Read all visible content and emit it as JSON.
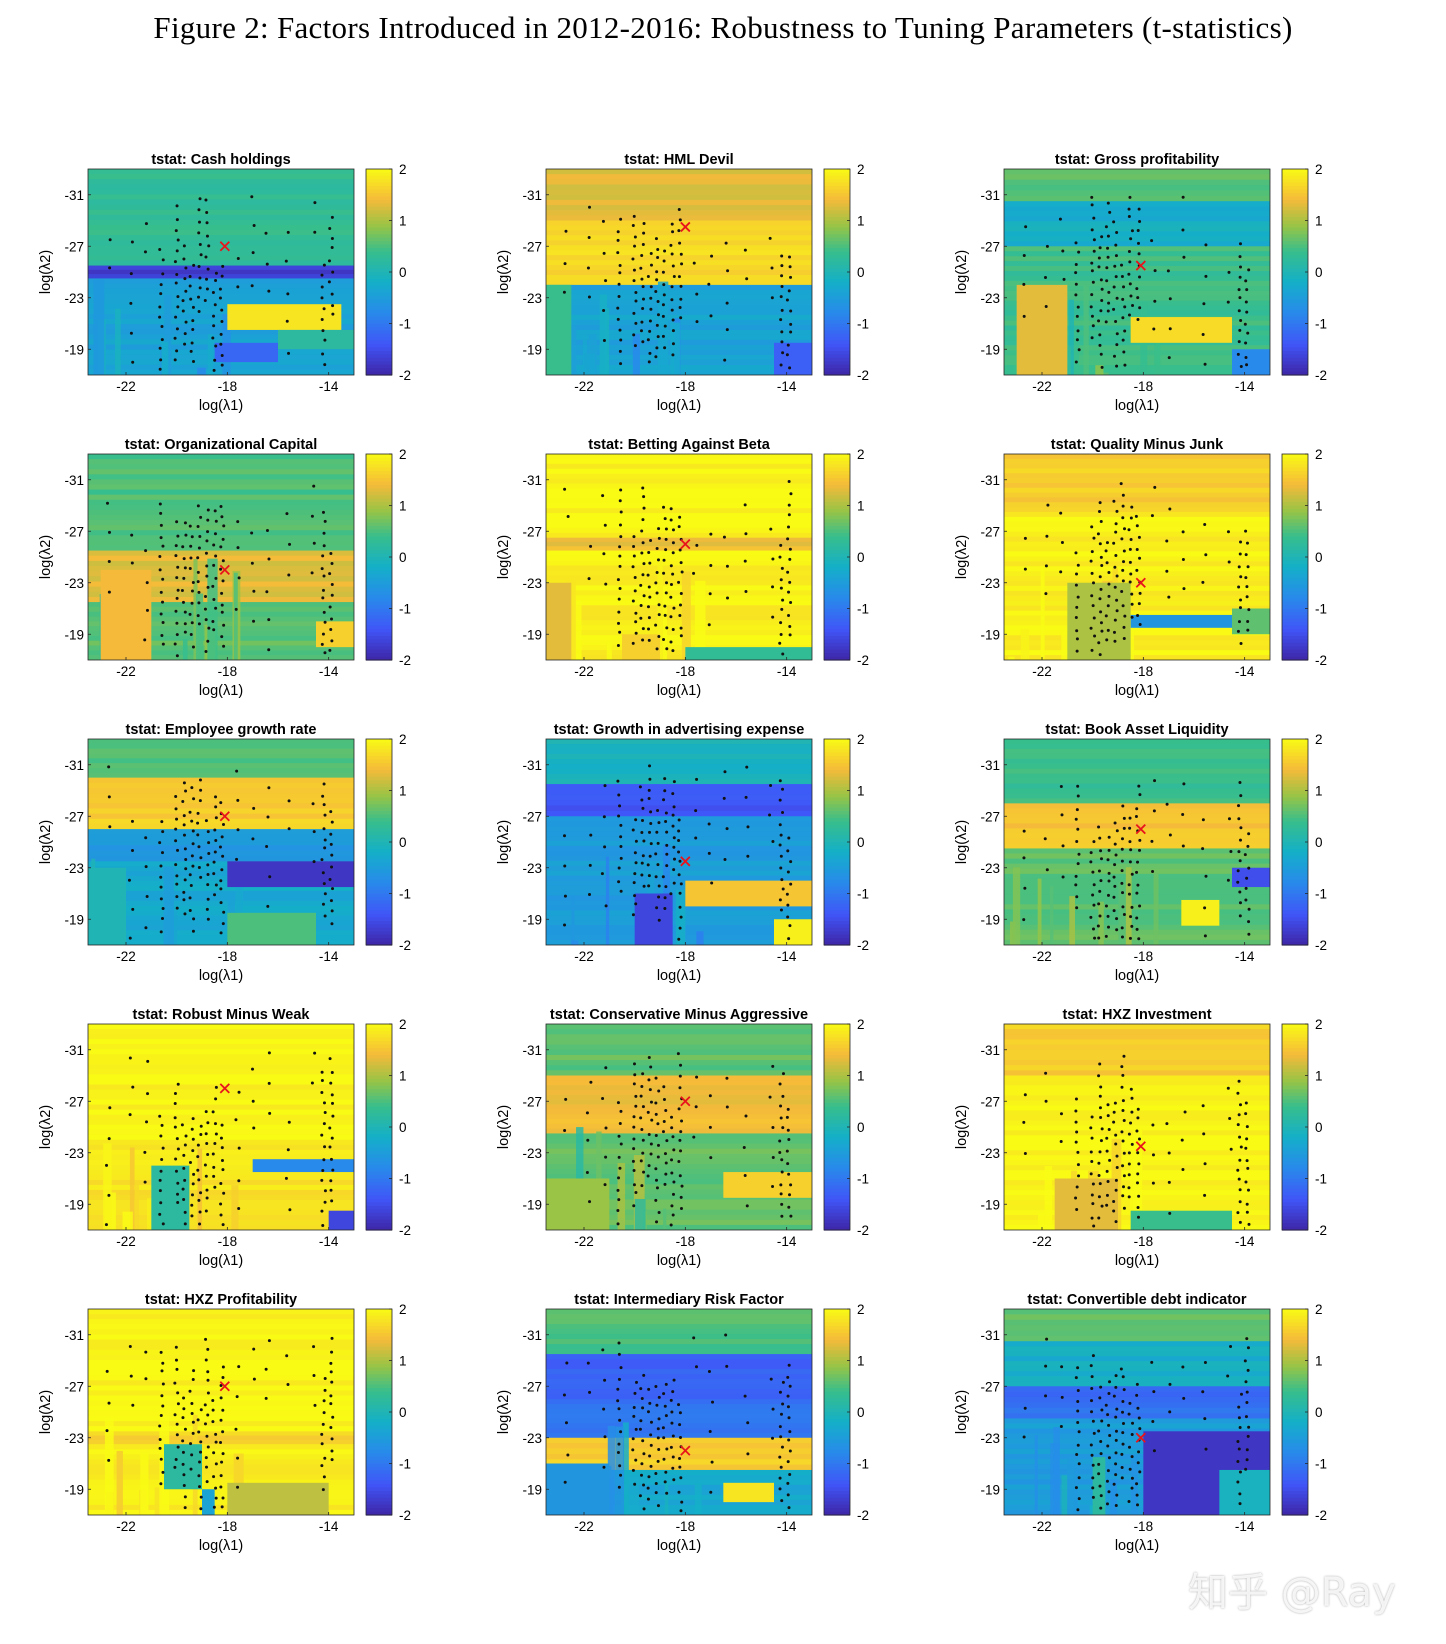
{
  "figure_title": "Figure 2: Factors Introduced in 2012-2016: Robustness to Tuning Parameters (t-statistics)",
  "watermark": "知乎 @Ray",
  "colors": {
    "min": "#3e26a8",
    "low": "#2f8cf0",
    "mid": "#17b0c4",
    "midhigh": "#67c46a",
    "high": "#f7b731",
    "max": "#f9fb14",
    "marker": "#e8141c",
    "dots": "#111111"
  },
  "chart_data": [
    {
      "type": "heatmap",
      "title": "tstat: Cash holdings",
      "xlabel": "log(λ1)",
      "ylabel": "log(λ2)",
      "xlim": [
        -23.5,
        -13
      ],
      "ylim": [
        -33,
        -17
      ],
      "xticks": [
        -22,
        -18,
        -14
      ],
      "yticks": [
        -31,
        -27,
        -23,
        -19
      ],
      "clim": [
        -2,
        2
      ],
      "colorbar_ticks": [
        2,
        1,
        0,
        -1,
        -2
      ],
      "marker": [
        -18.1,
        -27.0
      ],
      "bands": [
        [
          -33,
          -25.5,
          0.3
        ],
        [
          -25.5,
          -24.5,
          -1.7
        ],
        [
          -24.5,
          -17,
          -0.4
        ]
      ],
      "patches": [
        [
          -18,
          -13.5,
          -22.5,
          -20.5,
          1.8
        ],
        [
          -16,
          -13,
          -20.5,
          -19,
          0.2
        ],
        [
          -18.5,
          -16,
          -19.5,
          -18,
          -1.2
        ]
      ]
    },
    {
      "type": "heatmap",
      "title": "tstat: HML Devil",
      "xlabel": "log(λ1)",
      "ylabel": "log(λ2)",
      "xlim": [
        -23.5,
        -13
      ],
      "ylim": [
        -33,
        -17
      ],
      "xticks": [
        -22,
        -18,
        -14
      ],
      "yticks": [
        -31,
        -27,
        -23,
        -19
      ],
      "clim": [
        -2,
        2
      ],
      "colorbar_ticks": [
        2,
        1,
        0,
        -1,
        -2
      ],
      "marker": [
        -18.0,
        -28.5
      ],
      "bands": [
        [
          -33,
          -29,
          1.3
        ],
        [
          -29,
          -24,
          1.7
        ],
        [
          -24,
          -17,
          -0.4
        ]
      ],
      "patches": [
        [
          -14.5,
          -13,
          -19.5,
          -17,
          -1.3
        ],
        [
          -23.5,
          -22.5,
          -24,
          -17,
          0.4
        ]
      ]
    },
    {
      "type": "heatmap",
      "title": "tstat: Gross profitability",
      "xlabel": "log(λ1)",
      "ylabel": "log(λ2)",
      "xlim": [
        -23.5,
        -13
      ],
      "ylim": [
        -33,
        -17
      ],
      "xticks": [
        -22,
        -18,
        -14
      ],
      "yticks": [
        -31,
        -27,
        -23,
        -19
      ],
      "clim": [
        -2,
        2
      ],
      "colorbar_ticks": [
        2,
        1,
        0,
        -1,
        -2
      ],
      "marker": [
        -18.1,
        -25.5
      ],
      "bands": [
        [
          -33,
          -30.5,
          0.6
        ],
        [
          -30.5,
          -27,
          -0.2
        ],
        [
          -27,
          -17,
          0.4
        ]
      ],
      "patches": [
        [
          -23,
          -21,
          -24,
          -17,
          1.3
        ],
        [
          -18.5,
          -14.5,
          -21.5,
          -19.5,
          1.7
        ],
        [
          -14.5,
          -13,
          -19,
          -17,
          -0.8
        ]
      ]
    },
    {
      "type": "heatmap",
      "title": "tstat: Organizational Capital",
      "xlabel": "log(λ1)",
      "ylabel": "log(λ2)",
      "xlim": [
        -23.5,
        -13
      ],
      "ylim": [
        -33,
        -17
      ],
      "xticks": [
        -22,
        -18,
        -14
      ],
      "yticks": [
        -31,
        -27,
        -23,
        -19
      ],
      "clim": [
        -2,
        2
      ],
      "colorbar_ticks": [
        2,
        1,
        0,
        -1,
        -2
      ],
      "marker": [
        -18.1,
        -24.0
      ],
      "bands": [
        [
          -33,
          -25.5,
          0.5
        ],
        [
          -25.5,
          -21.5,
          1.3
        ],
        [
          -21.5,
          -17,
          0.6
        ]
      ],
      "patches": [
        [
          -23,
          -21,
          -24,
          -17,
          1.4
        ],
        [
          -14.5,
          -13,
          -20,
          -18,
          1.6
        ]
      ]
    },
    {
      "type": "heatmap",
      "title": "tstat: Betting Against Beta",
      "xlabel": "log(λ1)",
      "ylabel": "log(λ2)",
      "xlim": [
        -23.5,
        -13
      ],
      "ylim": [
        -33,
        -17
      ],
      "xticks": [
        -22,
        -18,
        -14
      ],
      "yticks": [
        -31,
        -27,
        -23,
        -19
      ],
      "clim": [
        -2,
        2
      ],
      "colorbar_ticks": [
        2,
        1,
        0,
        -1,
        -2
      ],
      "marker": [
        -18.0,
        -26.0
      ],
      "bands": [
        [
          -33,
          -26.5,
          1.95
        ],
        [
          -26.5,
          -25.5,
          1.4
        ],
        [
          -25.5,
          -17,
          1.9
        ]
      ],
      "patches": [
        [
          -18,
          -13,
          -18,
          -17,
          0.3
        ],
        [
          -23.5,
          -22.5,
          -23,
          -17,
          1.3
        ],
        [
          -20.5,
          -19,
          -19,
          -17,
          1.6
        ]
      ]
    },
    {
      "type": "heatmap",
      "title": "tstat: Quality Minus Junk",
      "xlabel": "log(λ1)",
      "ylabel": "log(λ2)",
      "xlim": [
        -23.5,
        -13
      ],
      "ylim": [
        -33,
        -17
      ],
      "xticks": [
        -22,
        -18,
        -14
      ],
      "yticks": [
        -31,
        -27,
        -23,
        -19
      ],
      "clim": [
        -2,
        2
      ],
      "colorbar_ticks": [
        2,
        1,
        0,
        -1,
        -2
      ],
      "marker": [
        -18.1,
        -23.0
      ],
      "bands": [
        [
          -33,
          -28.5,
          1.6
        ],
        [
          -28.5,
          -17,
          1.9
        ]
      ],
      "patches": [
        [
          -18.5,
          -14.5,
          -20.5,
          -19.5,
          -0.6
        ],
        [
          -21,
          -18.5,
          -23,
          -17,
          1.0
        ],
        [
          -14.5,
          -13,
          -21,
          -19,
          0.6
        ]
      ]
    },
    {
      "type": "heatmap",
      "title": "tstat: Employee growth rate",
      "xlabel": "log(λ1)",
      "ylabel": "log(λ2)",
      "xlim": [
        -23.5,
        -13
      ],
      "ylim": [
        -33,
        -17
      ],
      "xticks": [
        -22,
        -18,
        -14
      ],
      "yticks": [
        -31,
        -27,
        -23,
        -19
      ],
      "clim": [
        -2,
        2
      ],
      "colorbar_ticks": [
        2,
        1,
        0,
        -1,
        -2
      ],
      "marker": [
        -18.1,
        -27.0
      ],
      "bands": [
        [
          -33,
          -30,
          0.5
        ],
        [
          -30,
          -26,
          1.6
        ],
        [
          -26,
          -23.5,
          -0.6
        ],
        [
          -23.5,
          -17,
          -0.3
        ]
      ],
      "patches": [
        [
          -18,
          -13,
          -23.5,
          -21.5,
          -1.8
        ],
        [
          -18,
          -14.5,
          -19.5,
          -17,
          0.5
        ],
        [
          -23.5,
          -22,
          -23,
          -17,
          0.0
        ]
      ]
    },
    {
      "type": "heatmap",
      "title": "tstat: Growth in advertising expense",
      "xlabel": "log(λ1)",
      "ylabel": "log(λ2)",
      "xlim": [
        -23.5,
        -13
      ],
      "ylim": [
        -33,
        -17
      ],
      "xticks": [
        -22,
        -18,
        -14
      ],
      "yticks": [
        -31,
        -27,
        -23,
        -19
      ],
      "clim": [
        -2,
        2
      ],
      "colorbar_ticks": [
        2,
        1,
        0,
        -1,
        -2
      ],
      "marker": [
        -18.0,
        -23.5
      ],
      "bands": [
        [
          -33,
          -29.5,
          -0.1
        ],
        [
          -29.5,
          -27,
          -1.4
        ],
        [
          -27,
          -17,
          -0.5
        ]
      ],
      "patches": [
        [
          -18,
          -13,
          -22,
          -20,
          1.5
        ],
        [
          -14.5,
          -13,
          -19,
          -17,
          1.9
        ],
        [
          -20,
          -18.5,
          -21,
          -17,
          -1.6
        ]
      ]
    },
    {
      "type": "heatmap",
      "title": "tstat: Book Asset Liquidity",
      "xlabel": "log(λ1)",
      "ylabel": "log(λ2)",
      "xlim": [
        -23.5,
        -13
      ],
      "ylim": [
        -33,
        -17
      ],
      "xticks": [
        -22,
        -18,
        -14
      ],
      "yticks": [
        -31,
        -27,
        -23,
        -19
      ],
      "clim": [
        -2,
        2
      ],
      "colorbar_ticks": [
        2,
        1,
        0,
        -1,
        -2
      ],
      "marker": [
        -18.1,
        -26.0
      ],
      "bands": [
        [
          -33,
          -28,
          0.4
        ],
        [
          -28,
          -24.5,
          1.5
        ],
        [
          -24.5,
          -17,
          0.6
        ]
      ],
      "patches": [
        [
          -16.5,
          -15,
          -20.5,
          -18.5,
          1.9
        ],
        [
          -14.5,
          -13,
          -23,
          -21.5,
          -1.5
        ]
      ]
    },
    {
      "type": "heatmap",
      "title": "tstat: Robust Minus Weak",
      "xlabel": "log(λ1)",
      "ylabel": "log(λ2)",
      "xlim": [
        -23.5,
        -13
      ],
      "ylim": [
        -33,
        -17
      ],
      "xticks": [
        -22,
        -18,
        -14
      ],
      "yticks": [
        -31,
        -27,
        -23,
        -19
      ],
      "clim": [
        -2,
        2
      ],
      "colorbar_ticks": [
        2,
        1,
        0,
        -1,
        -2
      ],
      "marker": [
        -18.1,
        -28.0
      ],
      "bands": [
        [
          -33,
          -24,
          1.95
        ],
        [
          -24,
          -17,
          1.8
        ]
      ],
      "patches": [
        [
          -17,
          -13,
          -22.5,
          -21.5,
          -0.8
        ],
        [
          -21,
          -19.5,
          -22,
          -17,
          0.2
        ],
        [
          -14,
          -13,
          -18.5,
          -17,
          -1.6
        ]
      ]
    },
    {
      "type": "heatmap",
      "title": "tstat: Conservative Minus Aggressive",
      "xlabel": "log(λ1)",
      "ylabel": "log(λ2)",
      "xlim": [
        -23.5,
        -13
      ],
      "ylim": [
        -33,
        -17
      ],
      "xticks": [
        -22,
        -18,
        -14
      ],
      "yticks": [
        -31,
        -27,
        -23,
        -19
      ],
      "clim": [
        -2,
        2
      ],
      "colorbar_ticks": [
        2,
        1,
        0,
        -1,
        -2
      ],
      "marker": [
        -18.0,
        -27.0
      ],
      "bands": [
        [
          -33,
          -29,
          0.6
        ],
        [
          -29,
          -24.5,
          1.4
        ],
        [
          -24.5,
          -17,
          0.6
        ]
      ],
      "patches": [
        [
          -16.5,
          -13,
          -21.5,
          -19.5,
          1.6
        ],
        [
          -23.5,
          -21,
          -21,
          -17,
          0.9
        ]
      ]
    },
    {
      "type": "heatmap",
      "title": "tstat: HXZ Investment",
      "xlabel": "log(λ1)",
      "ylabel": "log(λ2)",
      "xlim": [
        -23.5,
        -13
      ],
      "ylim": [
        -33,
        -17
      ],
      "xticks": [
        -22,
        -18,
        -14
      ],
      "yticks": [
        -31,
        -27,
        -23,
        -19
      ],
      "clim": [
        -2,
        2
      ],
      "colorbar_ticks": [
        2,
        1,
        0,
        -1,
        -2
      ],
      "marker": [
        -18.1,
        -23.5
      ],
      "bands": [
        [
          -33,
          -29,
          1.6
        ],
        [
          -29,
          -17,
          1.95
        ]
      ],
      "patches": [
        [
          -18.5,
          -14.5,
          -18.5,
          -17,
          0.4
        ],
        [
          -21.5,
          -19,
          -21,
          -17,
          1.3
        ]
      ]
    },
    {
      "type": "heatmap",
      "title": "tstat: HXZ Profitability",
      "xlabel": "log(λ1)",
      "ylabel": "log(λ2)",
      "xlim": [
        -23.5,
        -13
      ],
      "ylim": [
        -33,
        -17
      ],
      "xticks": [
        -22,
        -18,
        -14
      ],
      "yticks": [
        -31,
        -27,
        -23,
        -19
      ],
      "clim": [
        -2,
        2
      ],
      "colorbar_ticks": [
        2,
        1,
        0,
        -1,
        -2
      ],
      "marker": [
        -18.1,
        -27.0
      ],
      "bands": [
        [
          -33,
          -23.5,
          1.95
        ],
        [
          -23.5,
          -22.5,
          1.6
        ],
        [
          -22.5,
          -17,
          1.9
        ]
      ],
      "patches": [
        [
          -20.5,
          -19,
          -22.5,
          -19,
          0.2
        ],
        [
          -18,
          -14,
          -19.5,
          -17,
          1.1
        ],
        [
          -19,
          -18.5,
          -19,
          -17,
          -0.4
        ]
      ]
    },
    {
      "type": "heatmap",
      "title": "tstat: Intermediary Risk Factor",
      "xlabel": "log(λ1)",
      "ylabel": "log(λ2)",
      "xlim": [
        -23.5,
        -13
      ],
      "ylim": [
        -33,
        -17
      ],
      "xticks": [
        -22,
        -18,
        -14
      ],
      "yticks": [
        -31,
        -27,
        -23,
        -19
      ],
      "clim": [
        -2,
        2
      ],
      "colorbar_ticks": [
        2,
        1,
        0,
        -1,
        -2
      ],
      "marker": [
        -18.0,
        -22.0
      ],
      "bands": [
        [
          -33,
          -29.5,
          0.5
        ],
        [
          -29.5,
          -26,
          -1.3
        ],
        [
          -26,
          -23,
          -1.0
        ],
        [
          -23,
          -20.5,
          1.6
        ],
        [
          -20.5,
          -17,
          -0.3
        ]
      ],
      "patches": [
        [
          -16.5,
          -14.5,
          -19.5,
          -18,
          1.8
        ],
        [
          -23.5,
          -21,
          -21,
          -17,
          -0.6
        ]
      ]
    },
    {
      "type": "heatmap",
      "title": "tstat: Convertible debt indicator",
      "xlabel": "log(λ1)",
      "ylabel": "log(λ2)",
      "xlim": [
        -23.5,
        -13
      ],
      "ylim": [
        -33,
        -17
      ],
      "xticks": [
        -22,
        -18,
        -14
      ],
      "yticks": [
        -31,
        -27,
        -23,
        -19
      ],
      "clim": [
        -2,
        2
      ],
      "colorbar_ticks": [
        2,
        1,
        0,
        -1,
        -2
      ],
      "marker": [
        -18.1,
        -23.0
      ],
      "bands": [
        [
          -33,
          -30.5,
          0.6
        ],
        [
          -30.5,
          -27,
          -0.2
        ],
        [
          -27,
          -24.5,
          -1.1
        ],
        [
          -24.5,
          -17,
          -0.5
        ]
      ],
      "patches": [
        [
          -18,
          -13,
          -23.5,
          -17,
          -1.8
        ],
        [
          -20,
          -19.5,
          -21.5,
          -17,
          0.2
        ],
        [
          -15,
          -13,
          -20.5,
          -17,
          -0.1
        ]
      ]
    }
  ]
}
